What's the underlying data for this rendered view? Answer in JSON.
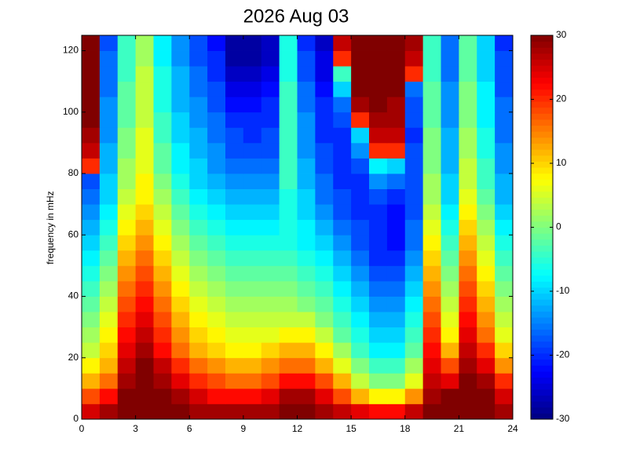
{
  "chart_data": {
    "type": "heatmap",
    "title": "2026 Aug 03",
    "y_label": "frequency in mHz",
    "colormap": "jet",
    "x_edges": [
      0,
      1,
      2,
      3,
      4,
      5,
      6,
      7,
      8,
      9,
      10,
      11,
      12,
      13,
      14,
      15,
      16,
      17,
      18,
      19,
      20,
      21,
      22,
      23,
      24
    ],
    "y_edges": [
      0,
      5,
      10,
      15,
      20,
      25,
      30,
      35,
      40,
      45,
      50,
      55,
      60,
      65,
      70,
      75,
      80,
      85,
      90,
      95,
      100,
      105,
      110,
      115,
      120,
      125
    ],
    "values": [
      [
        25,
        28,
        30,
        30,
        30,
        30,
        28,
        28,
        28,
        28,
        28,
        30,
        30,
        28,
        26,
        24,
        22,
        22,
        26,
        30,
        30,
        30,
        30,
        28
      ],
      [
        18,
        22,
        30,
        30,
        30,
        28,
        25,
        22,
        22,
        22,
        24,
        28,
        28,
        24,
        18,
        12,
        8,
        8,
        14,
        28,
        30,
        30,
        30,
        25
      ],
      [
        12,
        16,
        28,
        30,
        28,
        24,
        20,
        18,
        16,
        16,
        18,
        22,
        22,
        18,
        12,
        4,
        0,
        0,
        6,
        26,
        24,
        30,
        28,
        20
      ],
      [
        8,
        12,
        26,
        30,
        26,
        20,
        16,
        14,
        12,
        12,
        14,
        16,
        16,
        12,
        6,
        0,
        -4,
        -4,
        2,
        24,
        18,
        28,
        24,
        14
      ],
      [
        4,
        10,
        24,
        28,
        22,
        16,
        12,
        10,
        8,
        8,
        10,
        12,
        12,
        8,
        2,
        -4,
        -8,
        -8,
        -2,
        22,
        12,
        26,
        20,
        10
      ],
      [
        2,
        8,
        22,
        26,
        20,
        14,
        10,
        8,
        6,
        6,
        6,
        8,
        8,
        4,
        -2,
        -6,
        -10,
        -10,
        -4,
        20,
        8,
        24,
        16,
        6
      ],
      [
        0,
        6,
        20,
        24,
        18,
        12,
        8,
        6,
        4,
        4,
        4,
        4,
        4,
        0,
        -4,
        -8,
        -12,
        -12,
        -6,
        18,
        6,
        22,
        14,
        4
      ],
      [
        -2,
        4,
        18,
        22,
        16,
        10,
        6,
        4,
        2,
        2,
        2,
        2,
        0,
        -2,
        -6,
        -10,
        -14,
        -14,
        -8,
        16,
        4,
        20,
        12,
        2
      ],
      [
        -4,
        2,
        16,
        20,
        14,
        8,
        4,
        2,
        0,
        0,
        0,
        0,
        -2,
        -4,
        -8,
        -12,
        -16,
        -16,
        -10,
        14,
        2,
        18,
        10,
        0
      ],
      [
        -6,
        0,
        14,
        18,
        12,
        6,
        2,
        0,
        -2,
        -2,
        -2,
        -2,
        -4,
        -6,
        -10,
        -14,
        -18,
        -18,
        -12,
        12,
        0,
        16,
        8,
        -2
      ],
      [
        -8,
        -2,
        12,
        16,
        10,
        4,
        0,
        -2,
        -4,
        -4,
        -4,
        -4,
        -6,
        -8,
        -12,
        -16,
        -20,
        -20,
        -14,
        10,
        -2,
        14,
        6,
        -4
      ],
      [
        -10,
        -4,
        10,
        14,
        8,
        2,
        -2,
        -4,
        -6,
        -6,
        -6,
        -6,
        -8,
        -10,
        -14,
        -18,
        -20,
        -22,
        -16,
        8,
        -4,
        12,
        4,
        -6
      ],
      [
        -12,
        -6,
        8,
        12,
        6,
        0,
        -4,
        -6,
        -8,
        -8,
        -8,
        -6,
        -8,
        -12,
        -16,
        -18,
        -20,
        -22,
        -16,
        6,
        -6,
        10,
        2,
        -8
      ],
      [
        -14,
        -8,
        6,
        10,
        4,
        -2,
        -6,
        -8,
        -10,
        -10,
        -10,
        -6,
        -10,
        -14,
        -18,
        -20,
        -20,
        -22,
        -18,
        4,
        -8,
        8,
        0,
        -10
      ],
      [
        -16,
        -10,
        4,
        8,
        2,
        -4,
        -8,
        -10,
        -12,
        -12,
        -12,
        -6,
        -10,
        -16,
        -18,
        -20,
        -18,
        -20,
        -18,
        2,
        -10,
        6,
        -2,
        -12
      ],
      [
        -18,
        -10,
        2,
        8,
        0,
        -6,
        -10,
        -12,
        -14,
        -14,
        -14,
        -4,
        -12,
        -16,
        -20,
        -20,
        -14,
        -16,
        -18,
        2,
        -10,
        4,
        -4,
        -12
      ],
      [
        20,
        -12,
        2,
        6,
        -2,
        -8,
        -10,
        -14,
        -16,
        -16,
        -16,
        -4,
        -12,
        -18,
        -20,
        -18,
        -8,
        -10,
        -18,
        0,
        -12,
        4,
        -4,
        -14
      ],
      [
        26,
        -12,
        0,
        6,
        -2,
        -8,
        -12,
        -14,
        -18,
        -18,
        -18,
        -4,
        -14,
        -18,
        -20,
        -14,
        20,
        20,
        -18,
        0,
        -12,
        2,
        -6,
        -14
      ],
      [
        28,
        -14,
        0,
        6,
        -4,
        -10,
        -12,
        -16,
        -18,
        -20,
        -18,
        -4,
        -14,
        -20,
        -20,
        -10,
        26,
        26,
        -20,
        0,
        -12,
        2,
        -6,
        -16
      ],
      [
        30,
        -14,
        -2,
        4,
        -4,
        -10,
        -14,
        -16,
        -20,
        -20,
        -20,
        -4,
        -14,
        -20,
        -18,
        20,
        28,
        28,
        -18,
        -2,
        -14,
        0,
        -8,
        -16
      ],
      [
        30,
        -14,
        -2,
        4,
        -6,
        -12,
        -14,
        -18,
        -22,
        -22,
        -20,
        -4,
        -16,
        -20,
        -16,
        28,
        30,
        28,
        -18,
        -2,
        -14,
        0,
        -8,
        -16
      ],
      [
        30,
        -16,
        -2,
        4,
        -6,
        -12,
        -16,
        -18,
        -24,
        -24,
        -22,
        -4,
        -16,
        -22,
        -10,
        30,
        30,
        30,
        -16,
        -2,
        -14,
        0,
        -8,
        -18
      ],
      [
        30,
        -16,
        -4,
        4,
        -6,
        -12,
        -16,
        -20,
        -26,
        -26,
        -24,
        -6,
        -18,
        -24,
        -4,
        30,
        30,
        30,
        20,
        -4,
        -16,
        -2,
        -10,
        -18
      ],
      [
        30,
        -16,
        -4,
        2,
        -8,
        -14,
        -18,
        -20,
        -28,
        -28,
        -26,
        -6,
        -18,
        -24,
        20,
        30,
        30,
        30,
        26,
        -4,
        -16,
        -2,
        -10,
        -18
      ],
      [
        30,
        -18,
        -4,
        2,
        -8,
        -14,
        -18,
        -22,
        -28,
        -28,
        -26,
        -6,
        -20,
        -26,
        26,
        30,
        30,
        30,
        28,
        -4,
        -16,
        -2,
        -10,
        -20
      ]
    ],
    "xlim": [
      0,
      24
    ],
    "xticks": [
      0,
      3,
      6,
      9,
      12,
      15,
      18,
      21,
      24
    ],
    "ylim": [
      0,
      125
    ],
    "yticks": [
      0,
      20,
      40,
      60,
      80,
      100,
      120
    ],
    "clim": [
      -30,
      30
    ],
    "cticks": [
      -30,
      -20,
      -10,
      0,
      10,
      20,
      30
    ]
  }
}
